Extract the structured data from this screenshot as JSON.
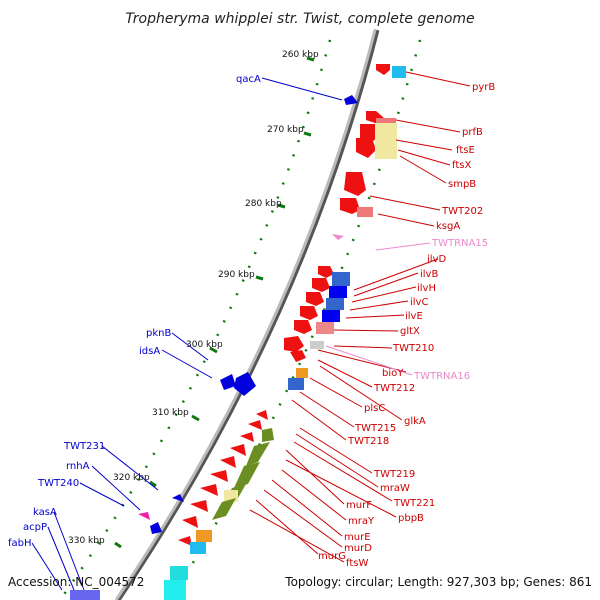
{
  "title": "Tropheryma whipplei str. Twist, complete genome",
  "accession": "Accession: NC_004572",
  "topology": "Topology: circular; Length: 927,303 bp; Genes: 861",
  "colors": {
    "forward_label": "#cc0000",
    "reverse_label": "#0000cc",
    "rna_label": "#ee88cc",
    "tick": "#117711",
    "backbone": "#888888"
  },
  "kbp_ticks": [
    "260 kbp",
    "270 kbp",
    "280 kbp",
    "290 kbp",
    "300 kbp",
    "310 kbp",
    "320 kbp",
    "330 kbp"
  ],
  "gene_labels_right": [
    "pyrB",
    "prfB",
    "ftsE",
    "ftsX",
    "smpB",
    "TWT202",
    "ksgA",
    "TWTRNA15",
    "ilvD",
    "ilvB",
    "ilvH",
    "ilvC",
    "ilvE",
    "gltX",
    "TWT210",
    "bioY",
    "TWTRNA16",
    "TWT212",
    "plsC",
    "glkA",
    "TWT215",
    "TWT218",
    "TWT219",
    "mraW",
    "TWT221",
    "murF",
    "pbpB",
    "mraY",
    "murE",
    "murD",
    "murG",
    "ftsW"
  ],
  "gene_labels_left": [
    "qacA",
    "pknB",
    "idsA",
    "TWT231",
    "rnhA",
    "TWT240",
    "kasA",
    "acpP",
    "fabH"
  ]
}
